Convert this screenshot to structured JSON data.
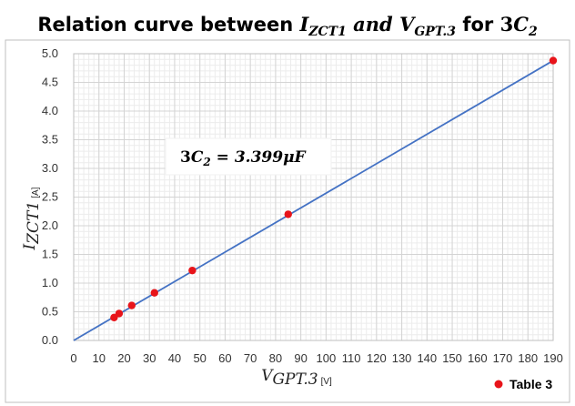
{
  "chart_data": {
    "type": "scatter",
    "title": {
      "prefix": "Relation curve between ",
      "var1": "I",
      "var1_sub": "ZCT1",
      "joiner": " and ",
      "var2": "V",
      "var2_sub": "GPT.3",
      "suffix": " for ",
      "coef": "3",
      "cap": "C",
      "cap_sub": "2"
    },
    "xlabel": {
      "var": "V",
      "sub": "GPT.3",
      "unit": "[V]"
    },
    "ylabel": {
      "var": "I",
      "sub": "ZCT1",
      "unit": "[A]"
    },
    "xlim": [
      0,
      190
    ],
    "ylim": [
      0,
      5.0
    ],
    "x_ticks": [
      "0",
      "10",
      "20",
      "30",
      "40",
      "50",
      "60",
      "70",
      "80",
      "90",
      "100",
      "110",
      "120",
      "130",
      "140",
      "150",
      "160",
      "170",
      "180",
      "190"
    ],
    "y_ticks": [
      "0.0",
      "0.5",
      "1.0",
      "1.5",
      "2.0",
      "2.5",
      "3.0",
      "3.5",
      "4.0",
      "4.5",
      "5.0"
    ],
    "grid": true,
    "series": [
      {
        "name": "Table 3",
        "color": "#e8141a",
        "points": [
          {
            "x": 16,
            "y": 0.4
          },
          {
            "x": 18,
            "y": 0.47
          },
          {
            "x": 23,
            "y": 0.61
          },
          {
            "x": 32,
            "y": 0.83
          },
          {
            "x": 47,
            "y": 1.22
          },
          {
            "x": 85,
            "y": 2.2
          },
          {
            "x": 190,
            "y": 4.88
          }
        ]
      }
    ],
    "fit_line": {
      "color": "#4472c4",
      "from": [
        0,
        0
      ],
      "to": [
        190,
        4.88
      ]
    },
    "annotation": {
      "coef": "3",
      "cap": "C",
      "cap_sub": "2",
      "eq": " = ",
      "value": "3.399",
      "unit": "μF"
    },
    "legend": {
      "position": "bottom-right",
      "label": "Table 3"
    }
  }
}
